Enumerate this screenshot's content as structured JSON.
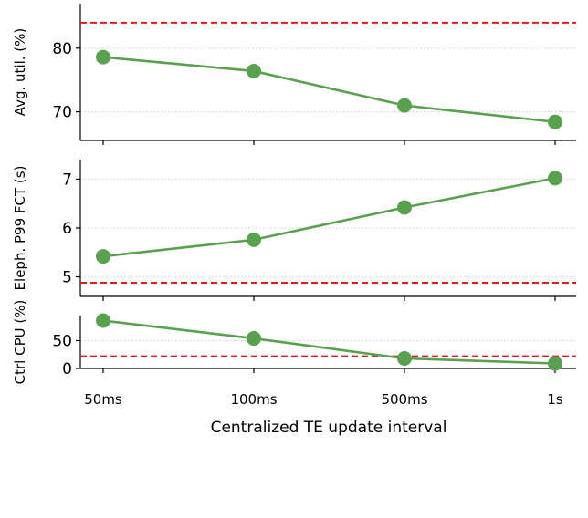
{
  "chart_data": [
    {
      "type": "line",
      "categories": [
        "50ms",
        "100ms",
        "500ms",
        "1s"
      ],
      "ylabel": "Avg. util. (%)",
      "ylim": [
        65.5,
        87
      ],
      "yticks": [
        70,
        80
      ],
      "series": [
        {
          "values": [
            78.6,
            76.4,
            71.0,
            68.4
          ],
          "color": "#59a14f"
        }
      ],
      "reference_line": {
        "y": 84,
        "color": "#e31a1c",
        "style": "dashed"
      },
      "grid": "horizontal dotted"
    },
    {
      "type": "line",
      "categories": [
        "50ms",
        "100ms",
        "500ms",
        "1s"
      ],
      "ylabel": "Eleph. P99 FCT (s)",
      "ylim": [
        4.6,
        7.4
      ],
      "yticks": [
        5,
        6,
        7
      ],
      "series": [
        {
          "values": [
            5.42,
            5.76,
            6.42,
            7.02
          ],
          "color": "#59a14f"
        }
      ],
      "reference_line": {
        "y": 4.88,
        "color": "#e31a1c",
        "style": "dashed"
      },
      "grid": "horizontal dotted"
    },
    {
      "type": "line",
      "categories": [
        "50ms",
        "100ms",
        "500ms",
        "1s"
      ],
      "ylabel": "Ctrl CPU (%)",
      "ylim": [
        0,
        95
      ],
      "yticks": [
        0,
        50
      ],
      "series": [
        {
          "values": [
            86,
            54,
            18,
            9
          ],
          "color": "#59a14f"
        }
      ],
      "reference_line": {
        "y": 22,
        "color": "#e31a1c",
        "style": "dashed"
      },
      "grid": "horizontal dotted"
    }
  ],
  "xlabel": "Centralized TE update interval"
}
